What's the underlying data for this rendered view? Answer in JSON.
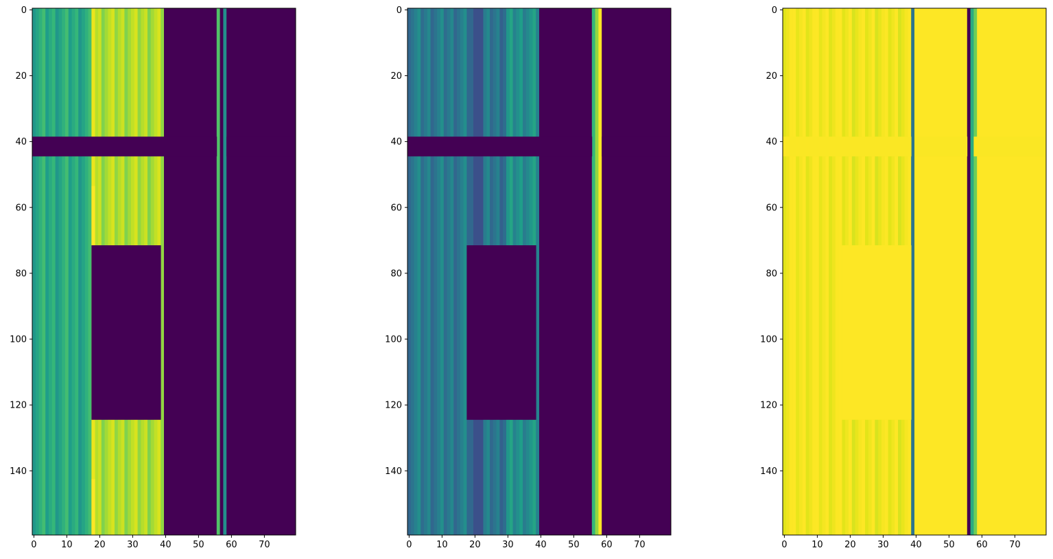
{
  "colors": {
    "dark": "#440154",
    "purple": "#482878",
    "indigo": "#3e4989",
    "blue": "#31688e",
    "teal": "#26828e",
    "teal_green": "#1f9e89",
    "green": "#35b779",
    "light_green": "#6ece58",
    "lime": "#b5de2b",
    "yellow": "#fde725"
  },
  "chart_data": [
    {
      "type": "heatmap",
      "title": "",
      "xlabel": "",
      "ylabel": "",
      "colormap": "viridis",
      "shape": [
        160,
        80
      ],
      "xlim": [
        0,
        80
      ],
      "ylim": [
        160,
        0
      ],
      "xticks": [
        0,
        10,
        20,
        30,
        40,
        50,
        60,
        70
      ],
      "yticks": [
        0,
        20,
        40,
        60,
        80,
        100,
        120,
        140
      ],
      "blocks": [
        {
          "cols": [
            0,
            18
          ],
          "rows": [
            0,
            160
          ],
          "level": 0.55,
          "striped": true
        },
        {
          "cols": [
            18,
            40
          ],
          "rows": [
            0,
            160
          ],
          "level": 0.8,
          "striped": true
        },
        {
          "cols": [
            18,
            19
          ],
          "rows": [
            0,
            160
          ],
          "level": 0.93
        },
        {
          "cols": [
            18,
            19
          ],
          "rows": [
            143,
            160
          ],
          "level": 1.0
        },
        {
          "cols": [
            18,
            19
          ],
          "rows": [
            54,
            72
          ],
          "level": 1.0
        },
        {
          "cols": [
            40,
            56
          ],
          "rows": [
            0,
            160
          ],
          "level": 0.0
        },
        {
          "cols": [
            56,
            57
          ],
          "rows": [
            0,
            160
          ],
          "level": 0.65
        },
        {
          "cols": [
            57,
            58
          ],
          "rows": [
            0,
            160
          ],
          "level": 0.0
        },
        {
          "cols": [
            58,
            59
          ],
          "rows": [
            0,
            160
          ],
          "level": 0.45
        },
        {
          "cols": [
            59,
            80
          ],
          "rows": [
            0,
            160
          ],
          "level": 0.0
        },
        {
          "cols": [
            0,
            56
          ],
          "rows": [
            39,
            45
          ],
          "level": 0.0
        },
        {
          "cols": [
            59,
            80
          ],
          "rows": [
            39,
            45
          ],
          "level": 0.0
        },
        {
          "cols": [
            18,
            39
          ],
          "rows": [
            72,
            125
          ],
          "level": 0.0
        }
      ]
    },
    {
      "type": "heatmap",
      "title": "",
      "xlabel": "",
      "ylabel": "",
      "colormap": "viridis",
      "shape": [
        160,
        80
      ],
      "xlim": [
        0,
        80
      ],
      "ylim": [
        160,
        0
      ],
      "xticks": [
        0,
        10,
        20,
        30,
        40,
        50,
        60,
        70
      ],
      "yticks": [
        0,
        20,
        40,
        60,
        80,
        100,
        120,
        140
      ],
      "blocks": [
        {
          "cols": [
            0,
            18
          ],
          "rows": [
            0,
            160
          ],
          "level": 0.37,
          "striped": true
        },
        {
          "cols": [
            18,
            20
          ],
          "rows": [
            0,
            160
          ],
          "level": 0.3
        },
        {
          "cols": [
            20,
            23
          ],
          "rows": [
            0,
            160
          ],
          "level": 0.22
        },
        {
          "cols": [
            23,
            30
          ],
          "rows": [
            0,
            160
          ],
          "level": 0.35,
          "striped": true
        },
        {
          "cols": [
            30,
            40
          ],
          "rows": [
            0,
            160
          ],
          "level": 0.45,
          "striped": true
        },
        {
          "cols": [
            40,
            56
          ],
          "rows": [
            0,
            160
          ],
          "level": 0.0
        },
        {
          "cols": [
            56,
            57
          ],
          "rows": [
            0,
            160
          ],
          "level": 0.6
        },
        {
          "cols": [
            57,
            58
          ],
          "rows": [
            0,
            160
          ],
          "level": 0.75
        },
        {
          "cols": [
            58,
            59
          ],
          "rows": [
            0,
            160
          ],
          "level": 1.0
        },
        {
          "cols": [
            59,
            80
          ],
          "rows": [
            0,
            160
          ],
          "level": 0.0
        },
        {
          "cols": [
            0,
            56
          ],
          "rows": [
            39,
            45
          ],
          "level": 0.0
        },
        {
          "cols": [
            59,
            80
          ],
          "rows": [
            39,
            45
          ],
          "level": 0.0
        },
        {
          "cols": [
            18,
            39
          ],
          "rows": [
            72,
            125
          ],
          "level": 0.0
        }
      ]
    },
    {
      "type": "heatmap",
      "title": "",
      "xlabel": "",
      "ylabel": "",
      "colormap": "viridis",
      "shape": [
        160,
        80
      ],
      "xlim": [
        0,
        80
      ],
      "ylim": [
        160,
        0
      ],
      "xticks": [
        0,
        10,
        20,
        30,
        40,
        50,
        60,
        70
      ],
      "yticks": [
        0,
        20,
        40,
        60,
        80,
        100,
        120,
        140
      ],
      "blocks": [
        {
          "cols": [
            0,
            18
          ],
          "rows": [
            0,
            160
          ],
          "level": 0.97,
          "striped": true
        },
        {
          "cols": [
            18,
            39
          ],
          "rows": [
            0,
            160
          ],
          "level": 0.95,
          "striped": true
        },
        {
          "cols": [
            39,
            40
          ],
          "rows": [
            0,
            160
          ],
          "level": 0.35
        },
        {
          "cols": [
            40,
            56
          ],
          "rows": [
            0,
            160
          ],
          "level": 1.0
        },
        {
          "cols": [
            56,
            57
          ],
          "rows": [
            0,
            160
          ],
          "level": 0.0
        },
        {
          "cols": [
            57,
            58
          ],
          "rows": [
            0,
            160
          ],
          "level": 0.55
        },
        {
          "cols": [
            58,
            59
          ],
          "rows": [
            0,
            160
          ],
          "level": 0.7
        },
        {
          "cols": [
            59,
            80
          ],
          "rows": [
            0,
            160
          ],
          "level": 1.0
        },
        {
          "cols": [
            0,
            39
          ],
          "rows": [
            39,
            45
          ],
          "level": 0.99
        },
        {
          "cols": [
            40,
            56
          ],
          "rows": [
            39,
            45
          ],
          "level": 0.99
        },
        {
          "cols": [
            58,
            80
          ],
          "rows": [
            39,
            45
          ],
          "level": 0.99
        },
        {
          "cols": [
            18,
            39
          ],
          "rows": [
            72,
            125
          ],
          "level": 1.0
        }
      ]
    }
  ]
}
